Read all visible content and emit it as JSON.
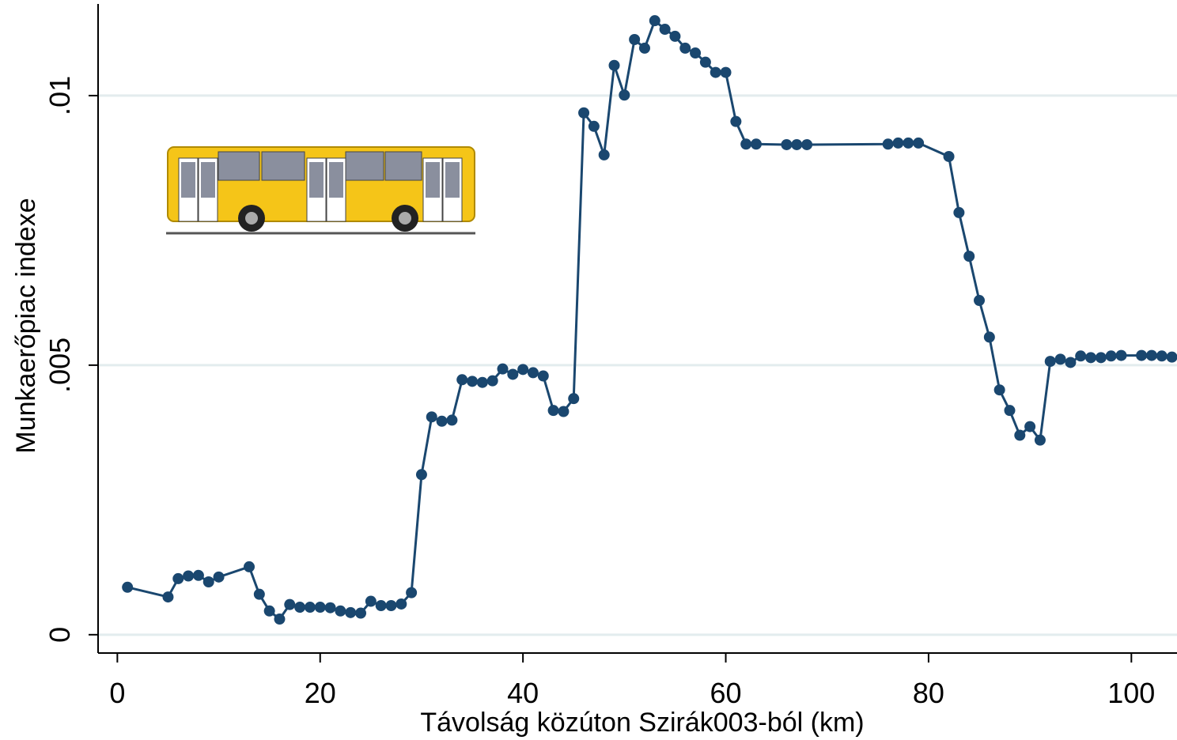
{
  "chart_data": {
    "type": "line",
    "x_label": "Távolság közúton Szirák003-ból (km)",
    "y_label": "Munkaerőpiac indexe",
    "xlim": [
      -1.9,
      104.5
    ],
    "ylim": [
      -0.00034,
      0.0117
    ],
    "xticks": [
      0,
      20,
      40,
      60,
      80,
      100
    ],
    "yticks": [
      0,
      {
        "value": 0.005,
        "label": ".005"
      },
      {
        "value": 0.01,
        "label": ".01"
      }
    ],
    "grid": true,
    "series": [
      {
        "color": "#1a476f",
        "x": [
          1,
          5,
          6,
          7,
          8,
          9,
          10,
          13,
          14,
          15,
          16,
          17,
          18,
          19,
          20,
          21,
          22,
          23,
          24,
          25,
          26,
          27,
          28,
          29,
          30,
          31,
          32,
          33,
          34,
          35,
          36,
          37,
          38,
          39,
          40,
          41,
          42,
          43,
          44,
          45,
          46,
          47,
          48,
          49,
          50,
          51,
          52,
          53,
          54,
          55,
          56,
          57,
          58,
          59,
          60,
          61,
          62,
          63,
          66,
          67,
          68,
          76,
          77,
          78,
          79,
          82,
          83,
          84,
          85,
          86,
          87,
          88,
          89,
          90,
          91,
          92,
          93,
          94,
          95,
          96,
          97,
          98,
          99,
          101,
          102,
          103,
          104
        ],
        "values": [
          0.00088,
          0.0007,
          0.00104,
          0.00109,
          0.0011,
          0.00098,
          0.00107,
          0.00126,
          0.00075,
          0.00044,
          0.00029,
          0.00056,
          0.00051,
          0.00051,
          0.00051,
          0.0005,
          0.00044,
          0.00041,
          0.0004,
          0.00062,
          0.00054,
          0.00054,
          0.00057,
          0.00078,
          0.00297,
          0.00404,
          0.00396,
          0.00398,
          0.00473,
          0.0047,
          0.00468,
          0.00471,
          0.00493,
          0.00483,
          0.00492,
          0.00486,
          0.0048,
          0.00416,
          0.00414,
          0.00438,
          0.00968,
          0.00943,
          0.0089,
          0.01056,
          0.01001,
          0.01104,
          0.01088,
          0.01139,
          0.01123,
          0.0111,
          0.01088,
          0.01079,
          0.01062,
          0.01043,
          0.01043,
          0.00952,
          0.0091,
          0.0091,
          0.00909,
          0.00909,
          0.00909,
          0.0091,
          0.00912,
          0.00912,
          0.00912,
          0.00887,
          0.00783,
          0.00702,
          0.0062,
          0.00552,
          0.00454,
          0.00416,
          0.0037,
          0.00386,
          0.00361,
          0.00507,
          0.00511,
          0.00505,
          0.00517,
          0.00514,
          0.00514,
          0.00517,
          0.00518,
          0.00518,
          0.00518,
          0.00517,
          0.00515
        ]
      }
    ]
  }
}
